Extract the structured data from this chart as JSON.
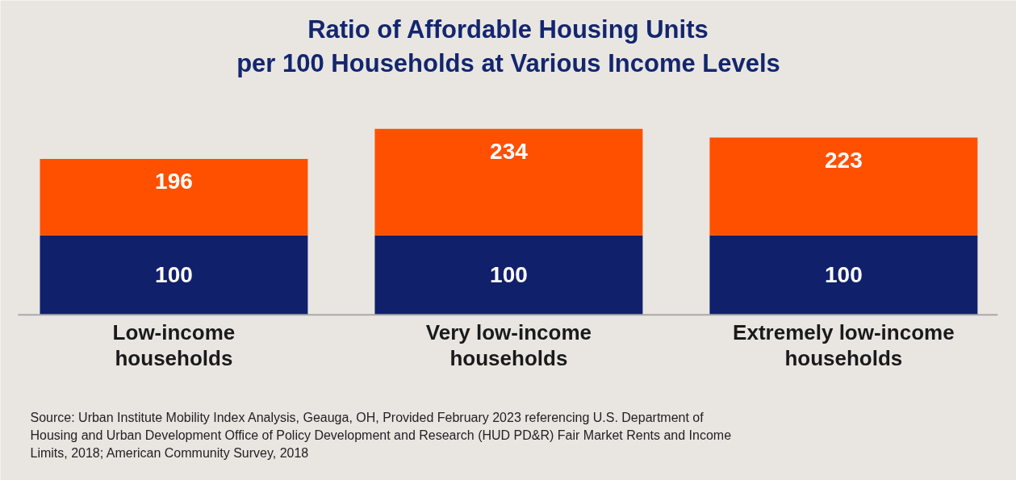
{
  "chart_data": {
    "type": "bar",
    "title": "Ratio of Affordable Housing Units\nper 100 Households at Various Income Levels",
    "categories": [
      "Low-income households",
      "Very low-income households",
      "Extremely low-income households"
    ],
    "stacked": true,
    "series": [
      {
        "name": null,
        "color": "#10206b",
        "values": [
          100,
          100,
          100
        ],
        "value_labels": [
          "100",
          "100",
          "100"
        ]
      },
      {
        "name": null,
        "color": "#ff5000",
        "values": [
          96,
          134,
          123
        ]
      }
    ],
    "totals": [
      "196",
      "234",
      "223"
    ],
    "annotations": [
      "Source: Urban Institute Mobility Index Analysis, Geauga, OH, Provided February 2023 referencing U.S. Department of Housing and Urban Development Office of Policy Development and Research (HUD PD&R) Fair Market Rents and Income Limits, 2018; American Community Survey, 2018"
    ]
  }
}
